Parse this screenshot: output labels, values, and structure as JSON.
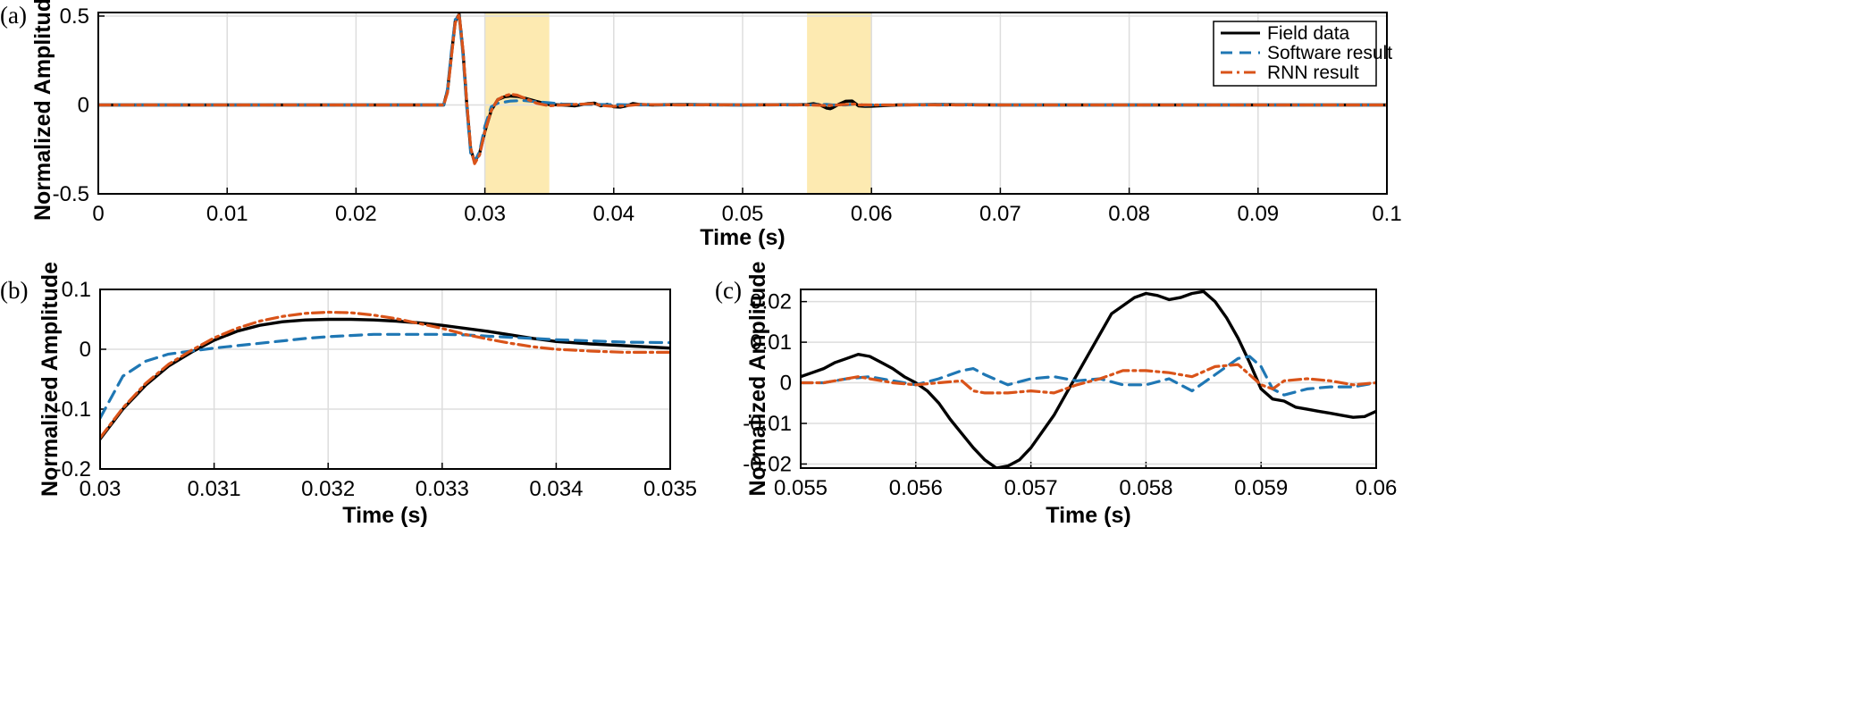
{
  "colors": {
    "field": "#000000",
    "software": "#1f77b4",
    "rnn": "#d95319",
    "highlight": "#fdeab1",
    "grid": "#dddddd"
  },
  "chart_data": [
    {
      "panel_label": "(a)",
      "type": "line",
      "xlabel": "Time (s)",
      "ylabel": "Normalized Amplitude",
      "xlim": [
        0,
        0.1
      ],
      "ylim": [
        -0.5,
        0.52
      ],
      "xticks": [
        0,
        0.01,
        0.02,
        0.03,
        0.04,
        0.05,
        0.06,
        0.07,
        0.08,
        0.09,
        0.1
      ],
      "xticklabels": [
        "0",
        "0.01",
        "0.02",
        "0.03",
        "0.04",
        "0.05",
        "0.06",
        "0.07",
        "0.08",
        "0.09",
        "0.1"
      ],
      "yticks": [
        -0.5,
        0,
        0.5
      ],
      "yticklabels": [
        "-0.5",
        "0",
        "0.5"
      ],
      "grid": true,
      "highlights": [
        [
          0.03,
          0.035
        ],
        [
          0.055,
          0.06
        ]
      ],
      "legend": {
        "position": "top-right",
        "entries": [
          "Field data",
          "Software result",
          "RNN result"
        ]
      },
      "series": [
        {
          "name": "Field data",
          "style": "solid",
          "x": [
            0,
            0.0268,
            0.0271,
            0.0274,
            0.0277,
            0.028,
            0.0283,
            0.0286,
            0.0289,
            0.0292,
            0.0296,
            0.03,
            0.0305,
            0.031,
            0.0315,
            0.032,
            0.0325,
            0.033,
            0.034,
            0.035,
            0.036,
            0.037,
            0.038,
            0.0385,
            0.039,
            0.0395,
            0.04,
            0.0405,
            0.041,
            0.0415,
            0.042,
            0.043,
            0.045,
            0.05,
            0.055,
            0.0555,
            0.056,
            0.0565,
            0.0568,
            0.057,
            0.0575,
            0.058,
            0.0585,
            0.059,
            0.0595,
            0.06,
            0.062,
            0.065,
            0.07,
            0.08,
            0.09,
            0.1
          ],
          "y": [
            0,
            0,
            0.08,
            0.28,
            0.47,
            0.51,
            0.3,
            0,
            -0.25,
            -0.32,
            -0.27,
            -0.15,
            -0.03,
            0.03,
            0.045,
            0.05,
            0.048,
            0.04,
            0.02,
            0.002,
            0,
            -0.005,
            0.008,
            0.01,
            -0.005,
            0.004,
            -0.01,
            -0.012,
            -0.005,
            0.008,
            0.003,
            0,
            0.002,
            0,
            0.002,
            0.007,
            0,
            -0.017,
            -0.021,
            -0.015,
            0.005,
            0.021,
            0.022,
            -0.005,
            -0.008,
            -0.007,
            0,
            0.002,
            0,
            0,
            0,
            0
          ]
        },
        {
          "name": "Software result",
          "style": "dashed",
          "x": [
            0,
            0.0268,
            0.0271,
            0.0274,
            0.0277,
            0.028,
            0.0283,
            0.0286,
            0.0289,
            0.0292,
            0.0296,
            0.03,
            0.0305,
            0.031,
            0.032,
            0.033,
            0.034,
            0.035,
            0.036,
            0.038,
            0.04,
            0.042,
            0.045,
            0.05,
            0.055,
            0.0565,
            0.057,
            0.058,
            0.0588,
            0.059,
            0.0595,
            0.06,
            0.065,
            0.07,
            0.08,
            0.09,
            0.1
          ],
          "y": [
            0,
            0,
            0.09,
            0.3,
            0.48,
            0.5,
            0.28,
            -0.02,
            -0.27,
            -0.32,
            -0.26,
            -0.12,
            -0.01,
            0.01,
            0.022,
            0.025,
            0.018,
            0.012,
            0.005,
            0.003,
            0.002,
            0,
            0,
            0,
            0,
            0.003,
            0,
            0,
            0.006,
            0.004,
            -0.002,
            0,
            0,
            0,
            0,
            0,
            0
          ]
        },
        {
          "name": "RNN result",
          "style": "dashdot",
          "x": [
            0,
            0.0268,
            0.0271,
            0.0274,
            0.0277,
            0.028,
            0.0283,
            0.0286,
            0.0289,
            0.0292,
            0.0296,
            0.03,
            0.0305,
            0.031,
            0.0315,
            0.032,
            0.0325,
            0.033,
            0.034,
            0.035,
            0.036,
            0.038,
            0.0385,
            0.039,
            0.04,
            0.041,
            0.042,
            0.045,
            0.05,
            0.055,
            0.0565,
            0.057,
            0.058,
            0.0587,
            0.059,
            0.0595,
            0.06,
            0.065,
            0.07,
            0.08,
            0.09,
            0.1
          ],
          "y": [
            0,
            0,
            0.07,
            0.27,
            0.46,
            0.51,
            0.31,
            0.01,
            -0.24,
            -0.33,
            -0.28,
            -0.15,
            -0.03,
            0.03,
            0.05,
            0.06,
            0.055,
            0.04,
            0.01,
            -0.005,
            0,
            0.006,
            0.008,
            -0.003,
            -0.008,
            -0.004,
            0.003,
            0,
            0.001,
            0,
            -0.003,
            -0.002,
            0.003,
            0.005,
            0,
            0.001,
            0,
            0,
            0,
            0,
            0,
            0
          ]
        }
      ]
    },
    {
      "panel_label": "(b)",
      "type": "line",
      "xlabel": "Time (s)",
      "ylabel": "Normalized Amplitude",
      "xlim": [
        0.03,
        0.035
      ],
      "ylim": [
        -0.2,
        0.1
      ],
      "xticks": [
        0.03,
        0.031,
        0.032,
        0.033,
        0.034,
        0.035
      ],
      "xticklabels": [
        "0.03",
        "0.031",
        "0.032",
        "0.033",
        "0.034",
        "0.035"
      ],
      "yticks": [
        -0.2,
        -0.1,
        0,
        0.1
      ],
      "yticklabels": [
        "-0.2",
        "-0.1",
        "0",
        "0.1"
      ],
      "grid": true,
      "series": [
        {
          "name": "Field data",
          "style": "solid",
          "x": [
            0.03,
            0.0302,
            0.0304,
            0.0306,
            0.0308,
            0.031,
            0.0312,
            0.0314,
            0.0316,
            0.0318,
            0.032,
            0.0322,
            0.0324,
            0.0326,
            0.0328,
            0.033,
            0.0332,
            0.0334,
            0.0336,
            0.0338,
            0.034,
            0.0343,
            0.0346,
            0.035
          ],
          "y": [
            -0.15,
            -0.1,
            -0.06,
            -0.028,
            -0.005,
            0.015,
            0.03,
            0.04,
            0.046,
            0.049,
            0.05,
            0.05,
            0.049,
            0.047,
            0.044,
            0.04,
            0.035,
            0.03,
            0.024,
            0.018,
            0.013,
            0.009,
            0.006,
            0.002
          ]
        },
        {
          "name": "Software result",
          "style": "dashed",
          "x": [
            0.03,
            0.0302,
            0.0304,
            0.0306,
            0.0308,
            0.031,
            0.0312,
            0.0314,
            0.0316,
            0.0318,
            0.032,
            0.0322,
            0.0324,
            0.0326,
            0.0328,
            0.033,
            0.0332,
            0.0334,
            0.0336,
            0.0338,
            0.034,
            0.0343,
            0.0346,
            0.035
          ],
          "y": [
            -0.115,
            -0.045,
            -0.02,
            -0.008,
            -0.003,
            0.002,
            0.006,
            0.01,
            0.014,
            0.018,
            0.021,
            0.023,
            0.025,
            0.025,
            0.025,
            0.025,
            0.024,
            0.022,
            0.02,
            0.018,
            0.016,
            0.014,
            0.012,
            0.011
          ]
        },
        {
          "name": "RNN result",
          "style": "dashdot",
          "x": [
            0.03,
            0.0302,
            0.0304,
            0.0306,
            0.0308,
            0.031,
            0.0312,
            0.0314,
            0.0316,
            0.0318,
            0.032,
            0.0322,
            0.0324,
            0.0326,
            0.0328,
            0.033,
            0.0332,
            0.0334,
            0.0336,
            0.0338,
            0.034,
            0.0343,
            0.0346,
            0.035
          ],
          "y": [
            -0.148,
            -0.098,
            -0.057,
            -0.025,
            -0.002,
            0.019,
            0.035,
            0.047,
            0.055,
            0.06,
            0.062,
            0.061,
            0.057,
            0.051,
            0.043,
            0.035,
            0.025,
            0.017,
            0.01,
            0.004,
            0,
            -0.003,
            -0.005,
            -0.005
          ]
        }
      ]
    },
    {
      "panel_label": "(c)",
      "type": "line",
      "xlabel": "Time (s)",
      "ylabel": "Normalized Amplitude",
      "xlim": [
        0.055,
        0.06
      ],
      "ylim": [
        -0.021,
        0.023
      ],
      "xticks": [
        0.055,
        0.056,
        0.057,
        0.058,
        0.059,
        0.06
      ],
      "xticklabels": [
        "0.055",
        "0.056",
        "0.057",
        "0.058",
        "0.059",
        "0.06"
      ],
      "yticks": [
        -0.02,
        -0.01,
        0,
        0.01,
        0.02
      ],
      "yticklabels": [
        "-0.02",
        "-0.01",
        "0",
        "0.01",
        "0.02"
      ],
      "grid": true,
      "series": [
        {
          "name": "Field data",
          "style": "solid",
          "x": [
            0.055,
            0.0551,
            0.0552,
            0.0553,
            0.0554,
            0.0555,
            0.0556,
            0.0557,
            0.0558,
            0.0559,
            0.056,
            0.0561,
            0.0562,
            0.0563,
            0.0564,
            0.0565,
            0.0566,
            0.0567,
            0.0568,
            0.0569,
            0.057,
            0.0571,
            0.0572,
            0.0573,
            0.0574,
            0.0575,
            0.0576,
            0.0577,
            0.0578,
            0.0579,
            0.058,
            0.0581,
            0.0582,
            0.0583,
            0.0584,
            0.0585,
            0.0586,
            0.0587,
            0.0588,
            0.0589,
            0.059,
            0.0591,
            0.0592,
            0.0593,
            0.0594,
            0.0595,
            0.0596,
            0.0597,
            0.0598,
            0.0599,
            0.06
          ],
          "y": [
            0.0015,
            0.0025,
            0.0035,
            0.005,
            0.006,
            0.007,
            0.0065,
            0.005,
            0.0035,
            0.0015,
            0,
            -0.002,
            -0.005,
            -0.009,
            -0.0125,
            -0.016,
            -0.019,
            -0.021,
            -0.0205,
            -0.019,
            -0.016,
            -0.012,
            -0.008,
            -0.003,
            0.002,
            0.007,
            0.012,
            0.017,
            0.019,
            0.021,
            0.022,
            0.0215,
            0.0205,
            0.021,
            0.022,
            0.0225,
            0.02,
            0.016,
            0.011,
            0.005,
            -0.0015,
            -0.004,
            -0.0045,
            -0.006,
            -0.0065,
            -0.007,
            -0.0075,
            -0.008,
            -0.0085,
            -0.0083,
            -0.007
          ]
        },
        {
          "name": "Software result",
          "style": "dashed",
          "x": [
            0.055,
            0.0552,
            0.0554,
            0.0556,
            0.0558,
            0.056,
            0.0562,
            0.0564,
            0.0565,
            0.0566,
            0.0568,
            0.057,
            0.0572,
            0.0574,
            0.0576,
            0.0578,
            0.058,
            0.0582,
            0.0584,
            0.0586,
            0.0588,
            0.0589,
            0.059,
            0.0591,
            0.0592,
            0.0594,
            0.0596,
            0.0598,
            0.06
          ],
          "y": [
            0,
            0,
            0.001,
            0.0015,
            0.0005,
            -0.0005,
            0.001,
            0.003,
            0.0035,
            0.002,
            -0.0005,
            0.001,
            0.0015,
            0.0005,
            0.001,
            -0.0005,
            -0.0005,
            0.001,
            -0.002,
            0.002,
            0.006,
            0.0065,
            0.004,
            -0.0015,
            -0.003,
            -0.0015,
            -0.001,
            -0.001,
            0
          ]
        },
        {
          "name": "RNN result",
          "style": "dashdot",
          "x": [
            0.055,
            0.0552,
            0.0554,
            0.0555,
            0.0556,
            0.0558,
            0.056,
            0.0562,
            0.0564,
            0.0565,
            0.0566,
            0.0568,
            0.057,
            0.0572,
            0.0574,
            0.0576,
            0.0578,
            0.058,
            0.0582,
            0.0584,
            0.0586,
            0.0588,
            0.059,
            0.0591,
            0.0592,
            0.0594,
            0.0596,
            0.0598,
            0.06
          ],
          "y": [
            0,
            0,
            0.001,
            0.0015,
            0.001,
            0,
            -0.0005,
            0,
            0.0005,
            -0.002,
            -0.0025,
            -0.0025,
            -0.002,
            -0.0025,
            -0.0005,
            0.001,
            0.003,
            0.003,
            0.0025,
            0.0015,
            0.004,
            0.0045,
            -0.0005,
            -0.0015,
            0.0005,
            0.001,
            0.0005,
            -0.0005,
            0
          ]
        }
      ]
    }
  ]
}
